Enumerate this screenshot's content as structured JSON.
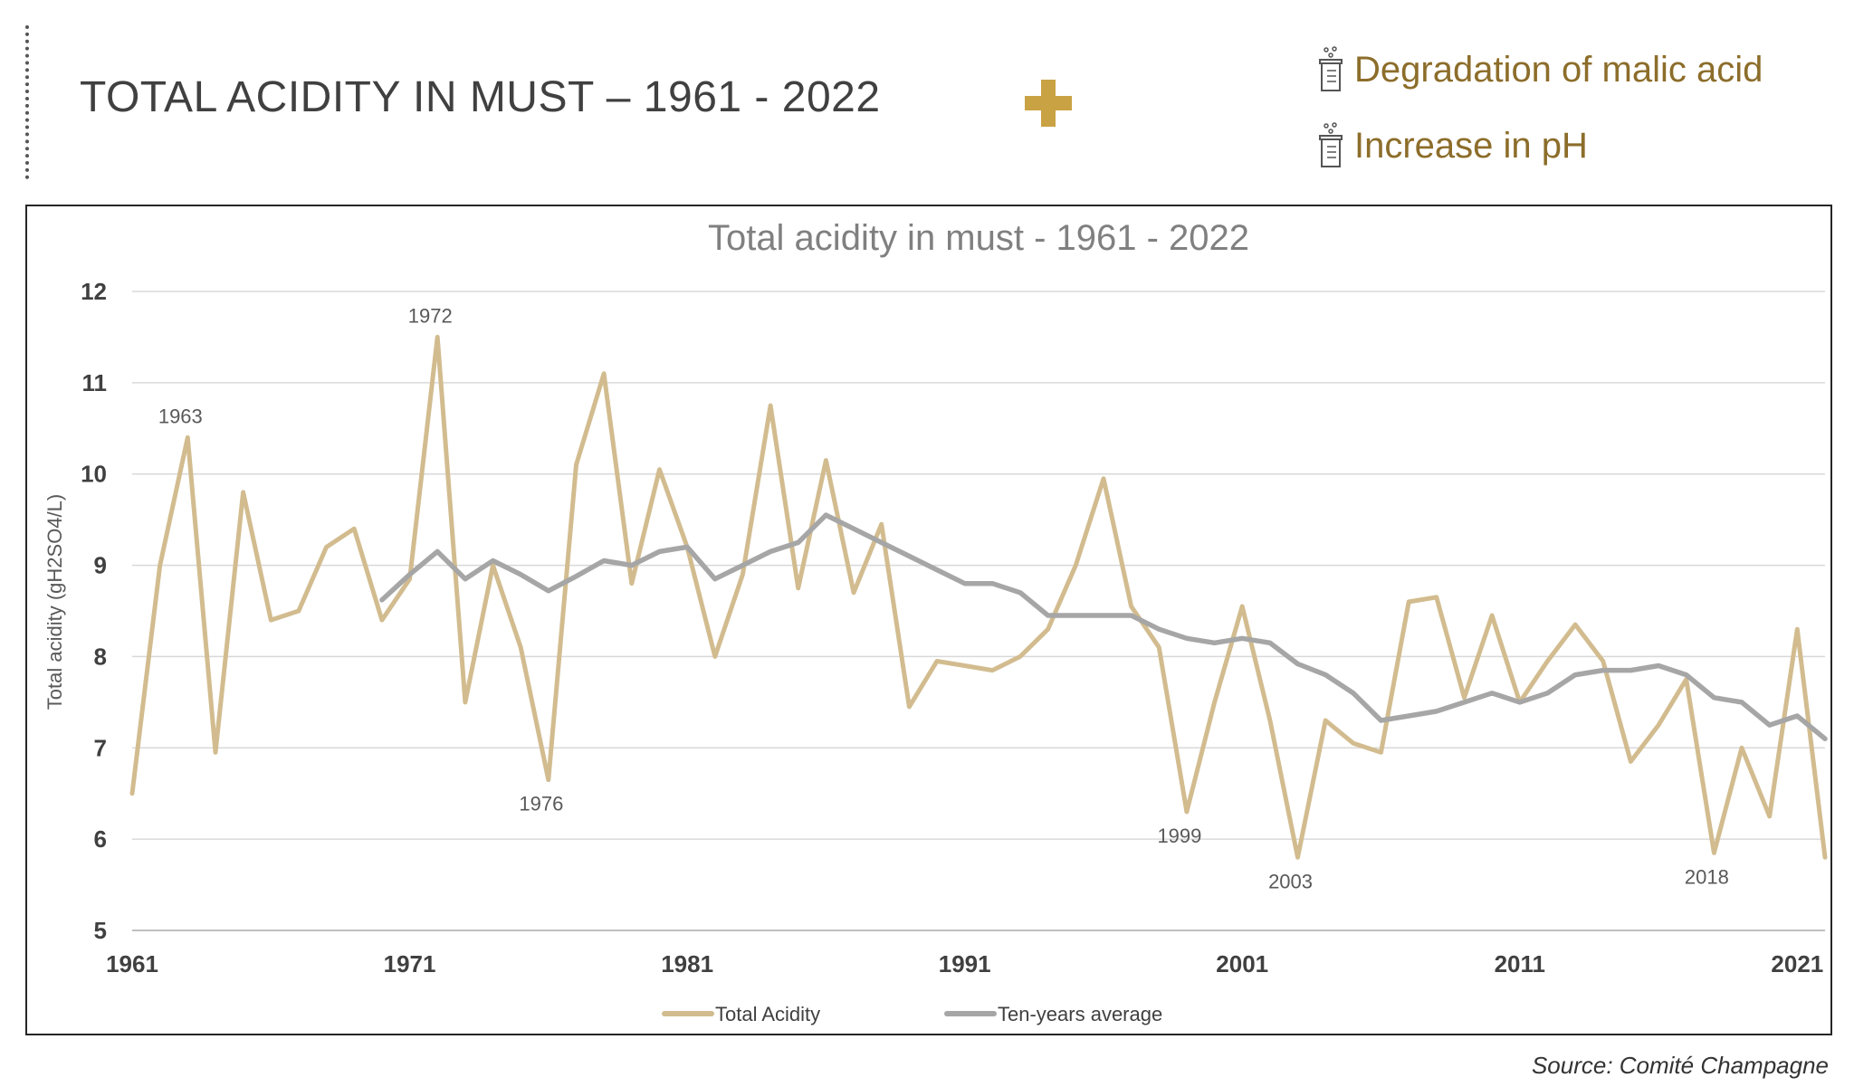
{
  "slide": {
    "title": "TOTAL ACIDITY IN MUST – 1961 - 2022",
    "notes": [
      "Degradation of malic acid",
      "Increase in pH"
    ],
    "source": "Source: Comité Champagne"
  },
  "colors": {
    "total_acidity": "#d2bc8f",
    "ten_year_average": "#a6a6a6",
    "accent": "#c9a244",
    "note_text": "#8c6d2a"
  },
  "icons": {
    "plus": "plus-icon",
    "note": "beaker-icon"
  },
  "chart_data": {
    "type": "line",
    "title": "Total acidity in must - 1961 - 2022",
    "ylabel": "Total acidity (gH2SO4/L)",
    "xlabel": "",
    "ylim": [
      5,
      12
    ],
    "xlim": [
      1961,
      2022
    ],
    "yticks": [
      5,
      6,
      7,
      8,
      9,
      10,
      11,
      12
    ],
    "xticks": [
      1961,
      1971,
      1981,
      1991,
      2001,
      2011,
      2021
    ],
    "grid": true,
    "legend": "bottom",
    "x": [
      1961,
      1962,
      1963,
      1964,
      1965,
      1966,
      1967,
      1968,
      1969,
      1970,
      1971,
      1972,
      1973,
      1974,
      1975,
      1976,
      1977,
      1978,
      1979,
      1980,
      1981,
      1982,
      1983,
      1984,
      1985,
      1986,
      1987,
      1988,
      1989,
      1990,
      1991,
      1992,
      1993,
      1994,
      1995,
      1996,
      1997,
      1998,
      1999,
      2000,
      2001,
      2002,
      2003,
      2004,
      2005,
      2006,
      2007,
      2008,
      2009,
      2010,
      2011,
      2012,
      2013,
      2014,
      2015,
      2016,
      2017,
      2018,
      2019,
      2020,
      2021,
      2022
    ],
    "series": [
      {
        "name": "Total Acidity",
        "values": [
          6.5,
          9.0,
          10.4,
          6.95,
          9.8,
          8.4,
          8.5,
          9.2,
          9.4,
          8.4,
          8.85,
          11.5,
          7.5,
          9.0,
          8.1,
          6.65,
          10.1,
          11.1,
          8.8,
          10.05,
          9.2,
          8.0,
          8.9,
          10.75,
          8.75,
          10.15,
          8.7,
          9.45,
          7.45,
          7.95,
          7.9,
          7.85,
          8.0,
          8.3,
          9.0,
          9.95,
          8.55,
          8.1,
          6.3,
          7.5,
          8.55,
          7.3,
          5.8,
          7.3,
          7.05,
          6.95,
          8.6,
          8.65,
          7.55,
          8.45,
          7.5,
          7.95,
          8.35,
          7.95,
          6.85,
          7.25,
          7.75,
          5.85,
          7.0,
          6.25,
          8.3,
          5.8
        ]
      },
      {
        "name": "Ten-years average",
        "values": [
          null,
          null,
          null,
          null,
          null,
          null,
          null,
          null,
          null,
          8.62,
          8.9,
          9.15,
          8.85,
          9.05,
          8.9,
          8.72,
          8.88,
          9.05,
          9.0,
          9.15,
          9.2,
          8.85,
          9.0,
          9.15,
          9.25,
          9.55,
          9.4,
          9.25,
          9.1,
          8.95,
          8.8,
          8.8,
          8.7,
          8.45,
          8.45,
          8.45,
          8.45,
          8.3,
          8.2,
          8.15,
          8.2,
          8.15,
          7.92,
          7.8,
          7.6,
          7.3,
          7.35,
          7.4,
          7.5,
          7.6,
          7.5,
          7.6,
          7.8,
          7.85,
          7.85,
          7.9,
          7.8,
          7.55,
          7.5,
          7.25,
          7.35,
          7.1
        ]
      }
    ],
    "annotations": [
      {
        "label": "1963",
        "x": 1963,
        "y": 10.4
      },
      {
        "label": "1972",
        "x": 1972,
        "y": 11.5
      },
      {
        "label": "1976",
        "x": 1976,
        "y": 6.65
      },
      {
        "label": "1999",
        "x": 1999,
        "y": 6.3
      },
      {
        "label": "2003",
        "x": 2003,
        "y": 5.8
      },
      {
        "label": "2018",
        "x": 2018,
        "y": 5.85
      }
    ]
  }
}
